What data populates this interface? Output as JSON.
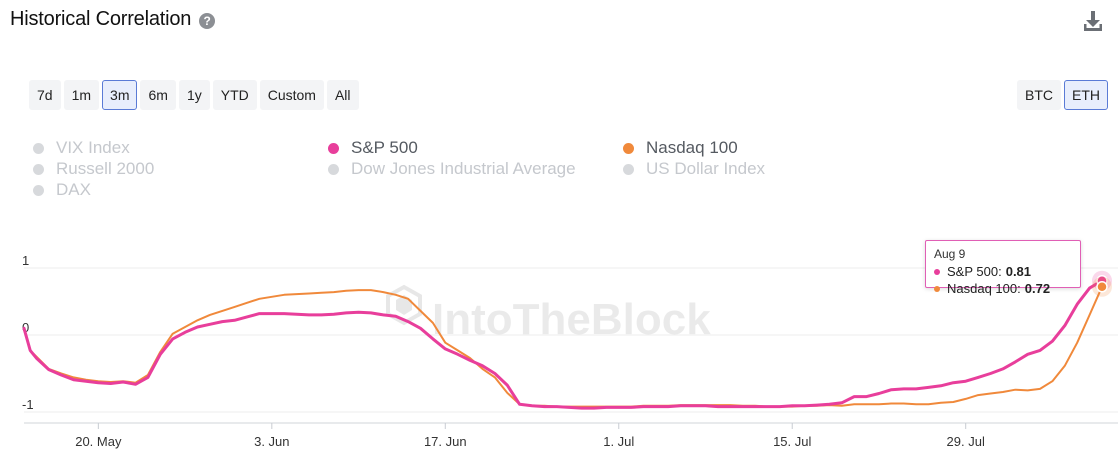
{
  "header": {
    "title": "Historical Correlation",
    "help_icon": "?"
  },
  "range_buttons": [
    {
      "label": "7d",
      "active": false
    },
    {
      "label": "1m",
      "active": false
    },
    {
      "label": "3m",
      "active": true
    },
    {
      "label": "6m",
      "active": false
    },
    {
      "label": "1y",
      "active": false
    },
    {
      "label": "YTD",
      "active": false
    },
    {
      "label": "Custom",
      "active": false
    },
    {
      "label": "All",
      "active": false
    }
  ],
  "asset_buttons": [
    {
      "label": "BTC",
      "active": false
    },
    {
      "label": "ETH",
      "active": true
    }
  ],
  "legend": [
    {
      "label": "VIX Index",
      "enabled": false,
      "color": "#d7d9dc"
    },
    {
      "label": "Russell 2000",
      "enabled": false,
      "color": "#d7d9dc"
    },
    {
      "label": "DAX",
      "enabled": false,
      "color": "#d7d9dc"
    },
    {
      "label": "S&P 500",
      "enabled": true,
      "color": "#e83e9b"
    },
    {
      "label": "Dow Jones Industrial Average",
      "enabled": false,
      "color": "#d7d9dc"
    },
    {
      "label": "Nasdaq 100",
      "enabled": true,
      "color": "#f0893b"
    },
    {
      "label": "US Dollar Index",
      "enabled": false,
      "color": "#d7d9dc"
    }
  ],
  "watermark": "IntoTheBlock",
  "tooltip": {
    "date": "Aug 9",
    "rows": [
      {
        "name": "S&P 500",
        "value": "0.81",
        "color": "#e83e9b"
      },
      {
        "name": "Nasdaq 100",
        "value": "0.72",
        "color": "#f0893b"
      }
    ]
  },
  "chart_data": {
    "type": "line",
    "title": "",
    "xlabel": "",
    "ylabel": "",
    "ylim": [
      -1,
      1
    ],
    "y_ticks": [
      "1",
      "0",
      "-1"
    ],
    "y_tick_values": [
      1,
      0,
      -1
    ],
    "x_ticks": [
      "20. May",
      "3. Jun",
      "17. Jun",
      "1. Jul",
      "15. Jul",
      "29. Jul"
    ],
    "x_tick_days": [
      6,
      20,
      34,
      48,
      62,
      76
    ],
    "x_range_days": [
      0,
      87
    ],
    "x": [
      0,
      0.5,
      1,
      2,
      3,
      4,
      5,
      6,
      7,
      8,
      9,
      10,
      11,
      12,
      13,
      14,
      15,
      16,
      17,
      18,
      19,
      20,
      21,
      22,
      23,
      24,
      25,
      26,
      27,
      28,
      29,
      30,
      31,
      32,
      33,
      34,
      35,
      36,
      37,
      38,
      39,
      40,
      41,
      42,
      43,
      44,
      45,
      46,
      47,
      48,
      49,
      50,
      51,
      52,
      53,
      54,
      55,
      56,
      57,
      58,
      59,
      60,
      61,
      62,
      63,
      64,
      65,
      66,
      67,
      68,
      69,
      70,
      71,
      72,
      73,
      74,
      75,
      76,
      77,
      78,
      79,
      80,
      81,
      82,
      83,
      84,
      85,
      86,
      87
    ],
    "grid": true,
    "legend_position": "top",
    "series": [
      {
        "name": "S&P 500",
        "color": "#e83e9b",
        "values": [
          0.1,
          -0.2,
          -0.3,
          -0.45,
          -0.52,
          -0.58,
          -0.6,
          -0.62,
          -0.63,
          -0.61,
          -0.64,
          -0.55,
          -0.25,
          -0.05,
          0.04,
          0.12,
          0.16,
          0.2,
          0.22,
          0.27,
          0.32,
          0.32,
          0.32,
          0.31,
          0.3,
          0.3,
          0.31,
          0.33,
          0.34,
          0.33,
          0.3,
          0.28,
          0.2,
          0.1,
          -0.05,
          -0.18,
          -0.25,
          -0.33,
          -0.4,
          -0.5,
          -0.65,
          -0.9,
          -0.92,
          -0.93,
          -0.93,
          -0.94,
          -0.95,
          -0.95,
          -0.94,
          -0.94,
          -0.94,
          -0.93,
          -0.93,
          -0.93,
          -0.92,
          -0.92,
          -0.92,
          -0.93,
          -0.93,
          -0.93,
          -0.93,
          -0.93,
          -0.93,
          -0.92,
          -0.92,
          -0.91,
          -0.9,
          -0.88,
          -0.8,
          -0.8,
          -0.76,
          -0.71,
          -0.7,
          -0.7,
          -0.68,
          -0.66,
          -0.62,
          -0.6,
          -0.55,
          -0.5,
          -0.44,
          -0.35,
          -0.25,
          -0.2,
          -0.08,
          0.14,
          0.46,
          0.7,
          0.81
        ]
      },
      {
        "name": "Nasdaq 100",
        "color": "#f0893b",
        "values": [
          0.1,
          -0.2,
          -0.28,
          -0.44,
          -0.5,
          -0.55,
          -0.58,
          -0.6,
          -0.61,
          -0.6,
          -0.62,
          -0.52,
          -0.22,
          0.02,
          0.12,
          0.22,
          0.3,
          0.36,
          0.42,
          0.48,
          0.54,
          0.57,
          0.6,
          0.61,
          0.62,
          0.63,
          0.64,
          0.66,
          0.67,
          0.67,
          0.64,
          0.6,
          0.54,
          0.36,
          0.18,
          -0.1,
          -0.2,
          -0.3,
          -0.44,
          -0.55,
          -0.75,
          -0.9,
          -0.92,
          -0.92,
          -0.93,
          -0.93,
          -0.93,
          -0.93,
          -0.93,
          -0.93,
          -0.93,
          -0.92,
          -0.92,
          -0.92,
          -0.91,
          -0.91,
          -0.91,
          -0.91,
          -0.91,
          -0.92,
          -0.92,
          -0.93,
          -0.93,
          -0.93,
          -0.92,
          -0.92,
          -0.91,
          -0.92,
          -0.9,
          -0.9,
          -0.9,
          -0.89,
          -0.89,
          -0.9,
          -0.9,
          -0.88,
          -0.87,
          -0.83,
          -0.78,
          -0.76,
          -0.74,
          -0.71,
          -0.72,
          -0.7,
          -0.6,
          -0.4,
          -0.1,
          0.3,
          0.72
        ]
      }
    ]
  }
}
